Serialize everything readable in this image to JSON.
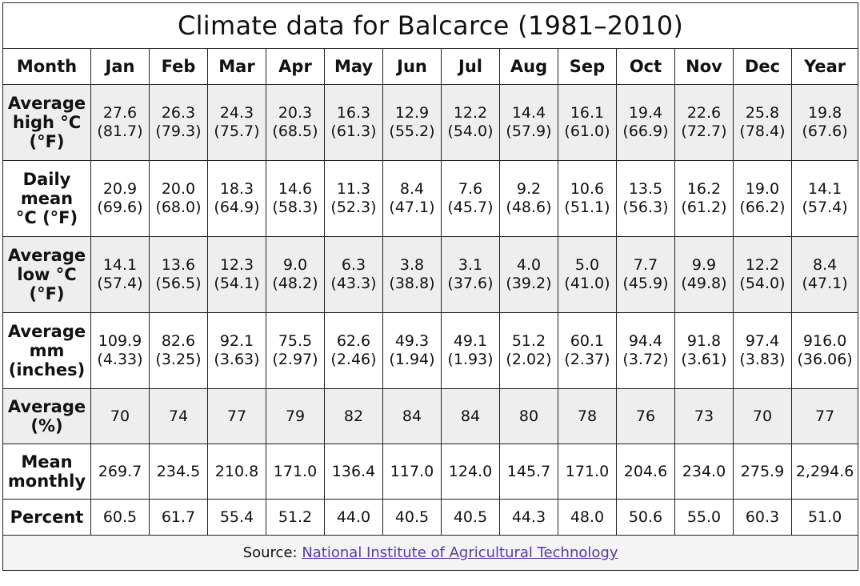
{
  "title": "Climate data for Balcarce (1981–2010)",
  "header": {
    "month_label": "Month",
    "months": [
      "Jan",
      "Feb",
      "Mar",
      "Apr",
      "May",
      "Jun",
      "Jul",
      "Aug",
      "Sep",
      "Oct",
      "Nov",
      "Dec",
      "Year"
    ]
  },
  "rows": {
    "high": {
      "label_lines": [
        "Average",
        "high °C",
        "(°F)"
      ],
      "values": [
        [
          "27.6",
          "(81.7)"
        ],
        [
          "26.3",
          "(79.3)"
        ],
        [
          "24.3",
          "(75.7)"
        ],
        [
          "20.3",
          "(68.5)"
        ],
        [
          "16.3",
          "(61.3)"
        ],
        [
          "12.9",
          "(55.2)"
        ],
        [
          "12.2",
          "(54.0)"
        ],
        [
          "14.4",
          "(57.9)"
        ],
        [
          "16.1",
          "(61.0)"
        ],
        [
          "19.4",
          "(66.9)"
        ],
        [
          "22.6",
          "(72.7)"
        ],
        [
          "25.8",
          "(78.4)"
        ],
        [
          "19.8",
          "(67.6)"
        ]
      ]
    },
    "mean": {
      "label_lines": [
        "Daily",
        "mean",
        "°C (°F)"
      ],
      "values": [
        [
          "20.9",
          "(69.6)"
        ],
        [
          "20.0",
          "(68.0)"
        ],
        [
          "18.3",
          "(64.9)"
        ],
        [
          "14.6",
          "(58.3)"
        ],
        [
          "11.3",
          "(52.3)"
        ],
        [
          "8.4",
          "(47.1)"
        ],
        [
          "7.6",
          "(45.7)"
        ],
        [
          "9.2",
          "(48.6)"
        ],
        [
          "10.6",
          "(51.1)"
        ],
        [
          "13.5",
          "(56.3)"
        ],
        [
          "16.2",
          "(61.2)"
        ],
        [
          "19.0",
          "(66.2)"
        ],
        [
          "14.1",
          "(57.4)"
        ]
      ]
    },
    "low": {
      "label_lines": [
        "Average",
        "low °C",
        "(°F)"
      ],
      "values": [
        [
          "14.1",
          "(57.4)"
        ],
        [
          "13.6",
          "(56.5)"
        ],
        [
          "12.3",
          "(54.1)"
        ],
        [
          "9.0",
          "(48.2)"
        ],
        [
          "6.3",
          "(43.3)"
        ],
        [
          "3.8",
          "(38.8)"
        ],
        [
          "3.1",
          "(37.6)"
        ],
        [
          "4.0",
          "(39.2)"
        ],
        [
          "5.0",
          "(41.0)"
        ],
        [
          "7.7",
          "(45.9)"
        ],
        [
          "9.9",
          "(49.8)"
        ],
        [
          "12.2",
          "(54.0)"
        ],
        [
          "8.4",
          "(47.1)"
        ]
      ]
    },
    "precip": {
      "label_lines": [
        "Average",
        "mm",
        "(inches)"
      ],
      "values": [
        [
          "109.9",
          "(4.33)"
        ],
        [
          "82.6",
          "(3.25)"
        ],
        [
          "92.1",
          "(3.63)"
        ],
        [
          "75.5",
          "(2.97)"
        ],
        [
          "62.6",
          "(2.46)"
        ],
        [
          "49.3",
          "(1.94)"
        ],
        [
          "49.1",
          "(1.93)"
        ],
        [
          "51.2",
          "(2.02)"
        ],
        [
          "60.1",
          "(2.37)"
        ],
        [
          "94.4",
          "(3.72)"
        ],
        [
          "91.8",
          "(3.61)"
        ],
        [
          "97.4",
          "(3.83)"
        ],
        [
          "916.0",
          "(36.06)"
        ]
      ]
    },
    "humidity": {
      "label_lines": [
        "Average",
        "(%)"
      ],
      "values": [
        "70",
        "74",
        "77",
        "79",
        "82",
        "84",
        "84",
        "80",
        "78",
        "76",
        "73",
        "70",
        "77"
      ]
    },
    "sunshine": {
      "label_lines": [
        "Mean",
        "monthly"
      ],
      "values": [
        "269.7",
        "234.5",
        "210.8",
        "171.0",
        "136.4",
        "117.0",
        "124.0",
        "145.7",
        "171.0",
        "204.6",
        "234.0",
        "275.9",
        "2,294.6"
      ]
    },
    "percent": {
      "label_lines": [
        "Percent"
      ],
      "values": [
        "60.5",
        "61.7",
        "55.4",
        "51.2",
        "44.0",
        "40.5",
        "40.5",
        "44.3",
        "48.0",
        "50.6",
        "55.0",
        "60.3",
        "51.0"
      ]
    }
  },
  "source": {
    "prefix": "Source: ",
    "link_text": "National Institute of Agricultural Technology"
  },
  "colors": {
    "shaded_row": "#eeeeee",
    "border": "#222222",
    "link": "#5b3a9e"
  }
}
